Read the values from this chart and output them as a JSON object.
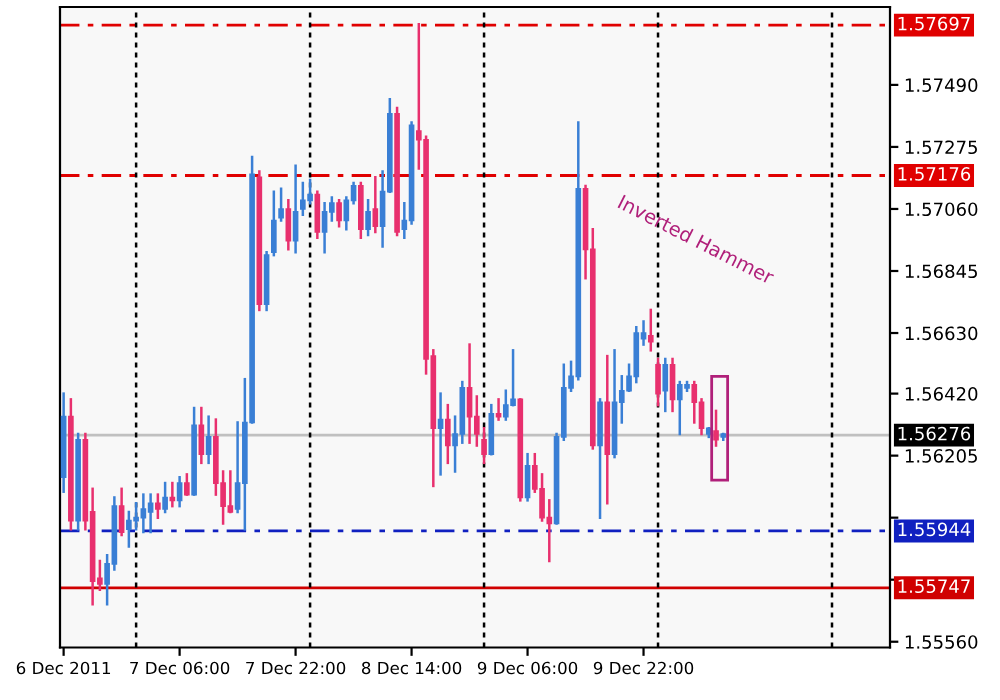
{
  "chart_data": {
    "type": "candlestick",
    "x": [
      "2011-12-06T14:00",
      "2011-12-06T15:00",
      "2011-12-06T16:00",
      "2011-12-06T17:00",
      "2011-12-06T18:00",
      "2011-12-06T19:00",
      "2011-12-06T20:00",
      "2011-12-06T21:00",
      "2011-12-06T22:00",
      "2011-12-06T23:00",
      "2011-12-07T00:00",
      "2011-12-07T01:00",
      "2011-12-07T02:00",
      "2011-12-07T03:00",
      "2011-12-07T04:00",
      "2011-12-07T05:00",
      "2011-12-07T06:00",
      "2011-12-07T07:00",
      "2011-12-07T08:00",
      "2011-12-07T09:00",
      "2011-12-07T10:00",
      "2011-12-07T11:00",
      "2011-12-07T12:00",
      "2011-12-07T13:00",
      "2011-12-07T14:00",
      "2011-12-07T15:00",
      "2011-12-07T16:00",
      "2011-12-07T17:00",
      "2011-12-07T18:00",
      "2011-12-07T19:00",
      "2011-12-07T20:00",
      "2011-12-07T21:00",
      "2011-12-07T22:00",
      "2011-12-07T23:00",
      "2011-12-08T00:00",
      "2011-12-08T01:00",
      "2011-12-08T02:00",
      "2011-12-08T03:00",
      "2011-12-08T04:00",
      "2011-12-08T05:00",
      "2011-12-08T06:00",
      "2011-12-08T07:00",
      "2011-12-08T08:00",
      "2011-12-08T09:00",
      "2011-12-08T10:00",
      "2011-12-08T11:00",
      "2011-12-08T12:00",
      "2011-12-08T13:00",
      "2011-12-08T14:00",
      "2011-12-08T15:00",
      "2011-12-08T16:00",
      "2011-12-08T17:00",
      "2011-12-08T18:00",
      "2011-12-08T19:00",
      "2011-12-08T20:00",
      "2011-12-08T21:00",
      "2011-12-08T22:00",
      "2011-12-08T23:00",
      "2011-12-09T00:00",
      "2011-12-09T01:00",
      "2011-12-09T02:00",
      "2011-12-09T03:00",
      "2011-12-09T04:00",
      "2011-12-09T05:00",
      "2011-12-09T06:00",
      "2011-12-09T07:00",
      "2011-12-09T08:00",
      "2011-12-09T09:00",
      "2011-12-09T10:00",
      "2011-12-09T11:00",
      "2011-12-09T12:00",
      "2011-12-09T13:00",
      "2011-12-09T14:00",
      "2011-12-09T15:00",
      "2011-12-09T16:00",
      "2011-12-09T17:00",
      "2011-12-09T18:00",
      "2011-12-09T19:00",
      "2011-12-09T20:00",
      "2011-12-09T21:00",
      "2011-12-09T22:00",
      "2011-12-09T23:00",
      "2011-12-10T00:00",
      "2011-12-10T01:00",
      "2011-12-10T02:00",
      "2011-12-10T03:00",
      "2011-12-10T04:00",
      "2011-12-10T05:00",
      "2011-12-10T06:00",
      "2011-12-10T07:00",
      "2011-12-10T08:00",
      "2011-12-10T09:00"
    ],
    "ohlc": [
      [
        1.5613,
        1.5642,
        1.5608,
        1.5634
      ],
      [
        1.5634,
        1.564,
        1.5595,
        1.5598
      ],
      [
        1.5598,
        1.5628,
        1.5595,
        1.5626
      ],
      [
        1.5626,
        1.5628,
        1.5595,
        1.5598
      ],
      [
        1.5601,
        1.5609,
        1.5569,
        1.5577
      ],
      [
        1.5578,
        1.5584,
        1.5574,
        1.5576
      ],
      [
        1.5576,
        1.5586,
        1.5569,
        1.5583
      ],
      [
        1.5583,
        1.5606,
        1.5581,
        1.5603
      ],
      [
        1.5603,
        1.5609,
        1.5593,
        1.5594
      ],
      [
        1.5595,
        1.5601,
        1.5589,
        1.5598
      ],
      [
        1.5598,
        1.5604,
        1.5595,
        1.5599
      ],
      [
        1.5599,
        1.5607,
        1.5594,
        1.5602
      ],
      [
        1.5601,
        1.5607,
        1.5594,
        1.5604
      ],
      [
        1.5604,
        1.5607,
        1.5599,
        1.5602
      ],
      [
        1.5602,
        1.5611,
        1.5601,
        1.5606
      ],
      [
        1.5606,
        1.5611,
        1.5603,
        1.5605
      ],
      [
        1.5605,
        1.5613,
        1.5603,
        1.5611
      ],
      [
        1.5611,
        1.5614,
        1.5607,
        1.5607
      ],
      [
        1.5607,
        1.5637,
        1.5607,
        1.5631
      ],
      [
        1.5631,
        1.5637,
        1.5618,
        1.5621
      ],
      [
        1.5621,
        1.5634,
        1.5618,
        1.5627
      ],
      [
        1.5627,
        1.5633,
        1.5607,
        1.5611
      ],
      [
        1.5611,
        1.5615,
        1.5597,
        1.5603
      ],
      [
        1.5603,
        1.5615,
        1.5601,
        1.5601
      ],
      [
        1.5602,
        1.5632,
        1.5601,
        1.5611
      ],
      [
        1.5611,
        1.5647,
        1.5595,
        1.5632
      ],
      [
        1.5632,
        1.5724,
        1.5632,
        1.5718
      ],
      [
        1.5717,
        1.5719,
        1.5671,
        1.5673
      ],
      [
        1.5673,
        1.5691,
        1.5671,
        1.569
      ],
      [
        1.5691,
        1.5712,
        1.569,
        1.5702
      ],
      [
        1.5703,
        1.5713,
        1.5702,
        1.5706
      ],
      [
        1.5706,
        1.5709,
        1.5692,
        1.5695
      ],
      [
        1.5695,
        1.5721,
        1.5691,
        1.5705
      ],
      [
        1.5706,
        1.5715,
        1.5704,
        1.5709
      ],
      [
        1.5709,
        1.5716,
        1.5708,
        1.5711
      ],
      [
        1.5711,
        1.5712,
        1.5696,
        1.5698
      ],
      [
        1.5698,
        1.5708,
        1.5691,
        1.5705
      ],
      [
        1.5705,
        1.571,
        1.5702,
        1.5708
      ],
      [
        1.5708,
        1.5709,
        1.57,
        1.5702
      ],
      [
        1.5702,
        1.571,
        1.5699,
        1.5709
      ],
      [
        1.5709,
        1.5715,
        1.5708,
        1.5714
      ],
      [
        1.5714,
        1.5715,
        1.5696,
        1.5699
      ],
      [
        1.5699,
        1.5709,
        1.5697,
        1.5705
      ],
      [
        1.5706,
        1.5717,
        1.5698,
        1.57
      ],
      [
        1.57,
        1.5719,
        1.5693,
        1.5712
      ],
      [
        1.5712,
        1.5744,
        1.5712,
        1.5739
      ],
      [
        1.5739,
        1.5741,
        1.5697,
        1.5698
      ],
      [
        1.5699,
        1.5708,
        1.5696,
        1.5702
      ],
      [
        1.5702,
        1.5736,
        1.5701,
        1.5735
      ],
      [
        1.5733,
        1.577,
        1.572,
        1.573
      ],
      [
        1.573,
        1.5731,
        1.5649,
        1.5654
      ],
      [
        1.5655,
        1.5657,
        1.561,
        1.563
      ],
      [
        1.563,
        1.5642,
        1.5614,
        1.5633
      ],
      [
        1.5633,
        1.5638,
        1.5618,
        1.5624
      ],
      [
        1.5624,
        1.5634,
        1.5615,
        1.5628
      ],
      [
        1.5628,
        1.5646,
        1.5625,
        1.5644
      ],
      [
        1.5644,
        1.5659,
        1.5625,
        1.5634
      ],
      [
        1.5634,
        1.5641,
        1.5624,
        1.5628
      ],
      [
        1.5626,
        1.563,
        1.5618,
        1.5621
      ],
      [
        1.5621,
        1.5638,
        1.5621,
        1.5635
      ],
      [
        1.5635,
        1.564,
        1.5633,
        1.5634
      ],
      [
        1.5634,
        1.5643,
        1.5633,
        1.5638
      ],
      [
        1.5638,
        1.5657,
        1.5638,
        1.564
      ],
      [
        1.564,
        1.564,
        1.5605,
        1.5606
      ],
      [
        1.5606,
        1.5621,
        1.5605,
        1.5617
      ],
      [
        1.5617,
        1.5621,
        1.5608,
        1.5609
      ],
      [
        1.5609,
        1.5614,
        1.5598,
        1.5599
      ],
      [
        1.5599,
        1.5605,
        1.5584,
        1.5597
      ],
      [
        1.5597,
        1.5628,
        1.5597,
        1.5627
      ],
      [
        1.5627,
        1.5652,
        1.5626,
        1.5644
      ],
      [
        1.5644,
        1.5653,
        1.5643,
        1.5648
      ],
      [
        1.5648,
        1.5736,
        1.5647,
        1.5713
      ],
      [
        1.5713,
        1.5714,
        1.5682,
        1.5692
      ],
      [
        1.5692,
        1.5699,
        1.5623,
        1.5624
      ],
      [
        1.5624,
        1.564,
        1.5599,
        1.5639
      ],
      [
        1.5639,
        1.5655,
        1.5604,
        1.5621
      ],
      [
        1.5621,
        1.5657,
        1.562,
        1.5639
      ],
      [
        1.5639,
        1.5648,
        1.5632,
        1.5643
      ],
      [
        1.5643,
        1.5652,
        1.5643,
        1.5648
      ],
      [
        1.5648,
        1.5665,
        1.5646,
        1.5663
      ],
      [
        1.5661,
        1.5667,
        1.5659,
        1.5663
      ],
      [
        1.5662,
        1.5671,
        1.5657,
        1.566
      ],
      [
        1.5652,
        1.5654,
        1.5638,
        1.5642
      ],
      [
        1.5643,
        1.5654,
        1.5636,
        1.5652
      ],
      [
        1.5652,
        1.5654,
        1.5636,
        1.564
      ],
      [
        1.564,
        1.5646,
        1.5628,
        1.5645
      ],
      [
        1.5644,
        1.5646,
        1.5643,
        1.5645
      ],
      [
        1.5645,
        1.5646,
        1.5632,
        1.5639
      ],
      [
        1.5639,
        1.564,
        1.5628,
        1.563
      ],
      [
        1.5628,
        1.563,
        1.5627,
        1.563
      ],
      [
        1.5629,
        1.5636,
        1.5624,
        1.5626
      ],
      [
        1.5627,
        1.5628,
        1.5626,
        1.5628
      ]
    ],
    "colors": [
      "#3a7fd5",
      "#e8306e",
      "#3a7fd5",
      "#e8306e",
      "#e8306e",
      "#e8306e",
      "#3a7fd5",
      "#3a7fd5",
      "#e8306e",
      "#3a7fd5",
      "#3a7fd5",
      "#3a7fd5",
      "#3a7fd5",
      "#e8306e",
      "#3a7fd5",
      "#e8306e",
      "#3a7fd5",
      "#e8306e",
      "#3a7fd5",
      "#e8306e",
      "#3a7fd5",
      "#e8306e",
      "#e8306e",
      "#e8306e",
      "#3a7fd5",
      "#3a7fd5",
      "#3a7fd5",
      "#e8306e",
      "#3a7fd5",
      "#3a7fd5",
      "#3a7fd5",
      "#e8306e",
      "#3a7fd5",
      "#3a7fd5",
      "#3a7fd5",
      "#e8306e",
      "#3a7fd5",
      "#3a7fd5",
      "#e8306e",
      "#3a7fd5",
      "#3a7fd5",
      "#e8306e",
      "#3a7fd5",
      "#e8306e",
      "#3a7fd5",
      "#3a7fd5",
      "#e8306e",
      "#3a7fd5",
      "#3a7fd5",
      "#e8306e",
      "#e8306e",
      "#e8306e",
      "#3a7fd5",
      "#e8306e",
      "#3a7fd5",
      "#3a7fd5",
      "#e8306e",
      "#e8306e",
      "#e8306e",
      "#3a7fd5",
      "#e8306e",
      "#3a7fd5",
      "#3a7fd5",
      "#e8306e",
      "#3a7fd5",
      "#e8306e",
      "#e8306e",
      "#e8306e",
      "#3a7fd5",
      "#3a7fd5",
      "#3a7fd5",
      "#3a7fd5",
      "#e8306e",
      "#e8306e",
      "#3a7fd5",
      "#e8306e",
      "#3a7fd5",
      "#3a7fd5",
      "#3a7fd5",
      "#3a7fd5",
      "#3a7fd5",
      "#e8306e",
      "#e8306e",
      "#3a7fd5",
      "#e8306e",
      "#3a7fd5",
      "#3a7fd5",
      "#e8306e",
      "#e8306e",
      "#3a7fd5",
      "#e8306e",
      "#3a7fd5"
    ],
    "xlim": [
      "2011-12-06T13:30",
      "2011-12-11T08:00"
    ],
    "xticks": [
      {
        "value": "2011-12-06T14:00",
        "label": "6 Dec 2011"
      },
      {
        "value": "2011-12-07T06:00",
        "label": "7 Dec 06:00"
      },
      {
        "value": "2011-12-07T22:00",
        "label": "7 Dec 22:00"
      },
      {
        "value": "2011-12-08T14:00",
        "label": "8 Dec 14:00"
      },
      {
        "value": "2011-12-09T06:00",
        "label": "9 Dec 06:00"
      },
      {
        "value": "2011-12-09T22:00",
        "label": "9 Dec 22:00"
      }
    ],
    "ylim": [
      1.5554,
      1.5776
    ],
    "yticks": [
      {
        "value": 1.5749,
        "label": "1.57490"
      },
      1.57275,
      {
        "value": 1.5706,
        "label": "1.57060"
      },
      1.56845,
      {
        "value": 1.5663,
        "label": "1.56630"
      },
      {
        "value": 1.5642,
        "label": "1.56420"
      },
      1.56205,
      {
        "value": 1.5599,
        "label": null
      },
      {
        "value": 1.55775,
        "label": null
      },
      {
        "value": 1.5556,
        "label": "1.55560"
      }
    ],
    "ref_lines": [
      {
        "axis": "y",
        "value": 1.57697,
        "label": "1.57697",
        "color": "#e00000",
        "line_style": "dashed"
      },
      {
        "axis": "y",
        "value": 1.57176,
        "label": "1.57176",
        "color": "#e00000",
        "line_style": "dashed"
      },
      {
        "axis": "y",
        "value": 1.56276,
        "label": "1.56276",
        "color": "#c0c0c0",
        "line_style": "solid"
      },
      {
        "axis": "y",
        "value": 1.55944,
        "label": "1.55944",
        "color": "#1020c0",
        "line_style": "dashed"
      },
      {
        "axis": "y",
        "value": 1.55747,
        "label": "1.55747",
        "color": "#d00000",
        "line_style": "solid"
      },
      {
        "axis": "x",
        "value": "2011-12-07T00:00",
        "color": "#000000",
        "line_style": "dotted"
      },
      {
        "axis": "x",
        "value": "2011-12-08T00:00",
        "color": "#000000",
        "line_style": "dotted"
      },
      {
        "axis": "x",
        "value": "2011-12-09T00:00",
        "color": "#000000",
        "line_style": "dotted"
      },
      {
        "axis": "x",
        "value": "2011-12-10T00:00",
        "color": "#000000",
        "line_style": "dotted"
      },
      {
        "axis": "x",
        "value": "2011-12-11T00:00",
        "color": "#000000",
        "line_style": "dotted"
      }
    ],
    "annotations": [
      "Inverted Hammer"
    ],
    "grid": false
  }
}
